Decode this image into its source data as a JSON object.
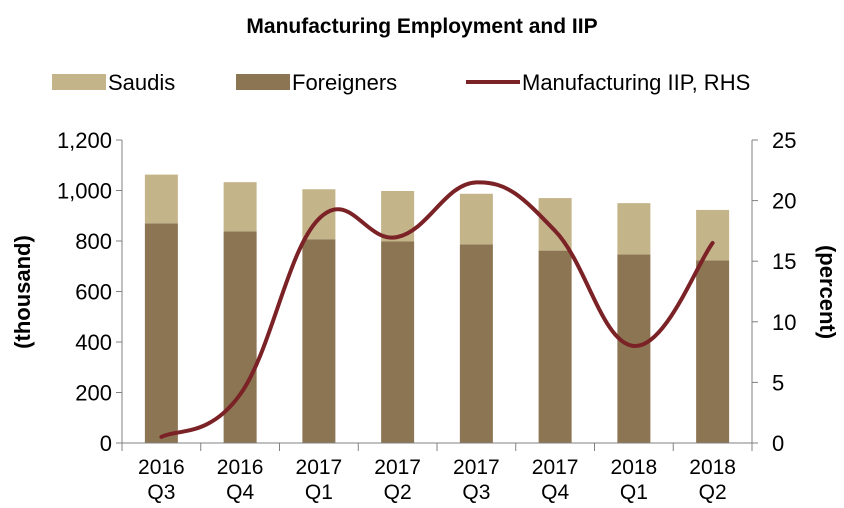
{
  "chart_data": {
    "type": "bar",
    "title": "Manufacturing Employment and IIP",
    "categories": [
      [
        "2016",
        "Q3"
      ],
      [
        "2016",
        "Q4"
      ],
      [
        "2017",
        "Q1"
      ],
      [
        "2017",
        "Q2"
      ],
      [
        "2017",
        "Q3"
      ],
      [
        "2017",
        "Q4"
      ],
      [
        "2018",
        "Q1"
      ],
      [
        "2018",
        "Q2"
      ]
    ],
    "stacked": true,
    "series": [
      {
        "name": "Saudis",
        "type": "bar",
        "axis": "left",
        "color": "#c4b48a",
        "values": [
          193,
          195,
          198,
          200,
          200,
          208,
          203,
          200
        ]
      },
      {
        "name": "Foreigners",
        "type": "bar",
        "axis": "left",
        "color": "#8c7553",
        "values": [
          870,
          838,
          807,
          798,
          787,
          762,
          747,
          723
        ]
      },
      {
        "name": "Manufacturing IIP, RHS",
        "type": "line",
        "axis": "right",
        "color": "#7b2226",
        "values": [
          0.5,
          4.0,
          18.5,
          17.0,
          21.5,
          17.5,
          8.0,
          16.5
        ]
      }
    ],
    "ylabel": "(thousand)",
    "ylim": [
      0,
      1200
    ],
    "yticks": [
      "0",
      "200",
      "400",
      "600",
      "800",
      "1,000",
      "1,200"
    ],
    "y2label": "(percent)",
    "y2lim": [
      0,
      25
    ],
    "y2ticks": [
      "0",
      "5",
      "10",
      "15",
      "20",
      "25"
    ],
    "grid": false,
    "legend_position": "top"
  }
}
